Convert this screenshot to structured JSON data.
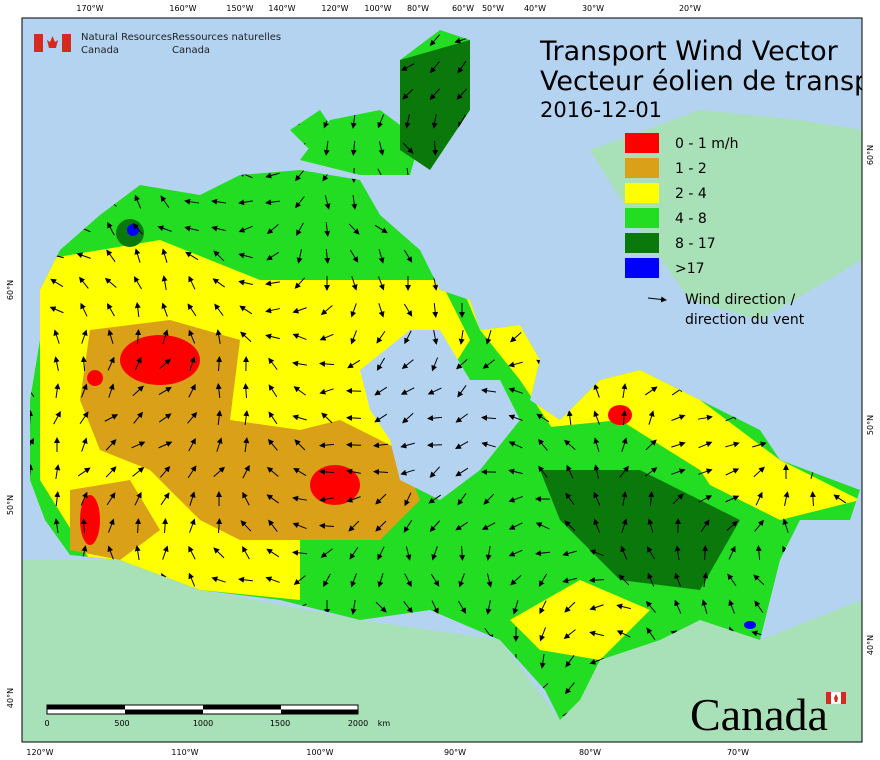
{
  "header": {
    "agency_en": [
      "Natural Resources",
      "Canada"
    ],
    "agency_fr": [
      "Ressources naturelles",
      "Canada"
    ]
  },
  "title": [
    "Transport Wind Vector",
    "Vecteur éolien de transp"
  ],
  "date": "2016-12-01",
  "legend": {
    "items": [
      {
        "label": "0 - 1 m/h",
        "color": "#ff0000"
      },
      {
        "label": "1 - 2",
        "color": "#d9a018"
      },
      {
        "label": "2 - 4",
        "color": "#ffff00"
      },
      {
        "label": "4 - 8",
        "color": "#22dd22"
      },
      {
        "label": "8 - 17",
        "color": "#0a780a"
      },
      {
        "label": ">17",
        "color": "#0000ff"
      }
    ],
    "arrow": [
      "Wind direction /",
      "direction du vent"
    ]
  },
  "top_labels": [
    "170°W",
    "160°W",
    "150°W",
    "140°W",
    "120°W",
    "100°W",
    "80°W",
    "60°W",
    "50°W",
    "40°W",
    "30°W",
    "20°W"
  ],
  "bottom_labels": [
    "120°W",
    "110°W",
    "100°W",
    "90°W",
    "80°W",
    "70°W"
  ],
  "left_labels": [
    "60°N",
    "50°N",
    "40°N"
  ],
  "right_labels": [
    "60°N",
    "50°N",
    "40°N"
  ],
  "scale": {
    "labels": [
      "0",
      "500",
      "1000",
      "1500",
      "2000"
    ],
    "unit": "km"
  },
  "wordmark": "Canada"
}
